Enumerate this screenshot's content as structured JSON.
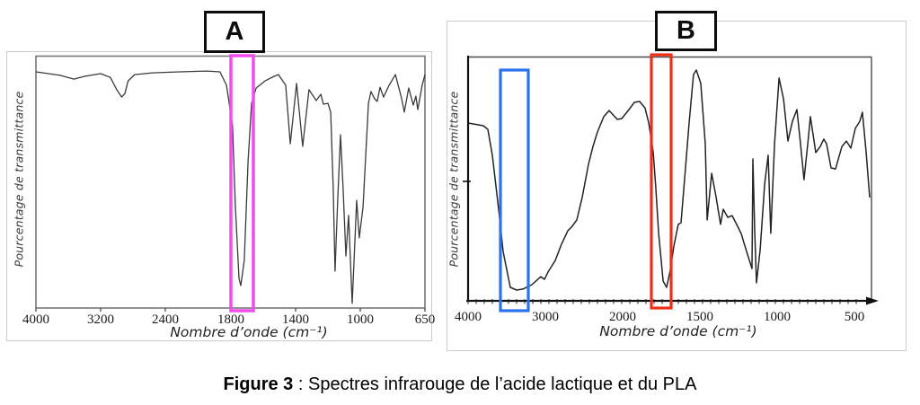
{
  "figure": {
    "caption_bold": "Figure 3",
    "caption_rest": " : Spectres infrarouge de l’acide lactique et du PLA"
  },
  "chart_data": [
    {
      "id": "A",
      "panel_label": "A",
      "type": "line",
      "xlabel": "Nombre d’onde (cm⁻¹)",
      "ylabel": "Pourcentage de transmittance",
      "x_ticks": [
        4000,
        3200,
        2400,
        1800,
        1400,
        1000,
        650
      ],
      "x_axis_reversed": true,
      "ylim": [
        0,
        100
      ],
      "grid": false,
      "series": [
        {
          "name": "spectre-A",
          "points": [
            [
              4000,
              93.6
            ],
            [
              3700,
              92.2
            ],
            [
              3530,
              90.7
            ],
            [
              3400,
              91.8
            ],
            [
              3200,
              92.9
            ],
            [
              3080,
              91.4
            ],
            [
              3000,
              86.5
            ],
            [
              2940,
              83.6
            ],
            [
              2900,
              85.0
            ],
            [
              2860,
              90.0
            ],
            [
              2780,
              92.5
            ],
            [
              2560,
              93.2
            ],
            [
              2270,
              93.6
            ],
            [
              2020,
              93.9
            ],
            [
              1900,
              93.6
            ],
            [
              1840,
              88.3
            ],
            [
              1790,
              72.2
            ],
            [
              1772,
              40.2
            ],
            [
              1750,
              11.7
            ],
            [
              1739,
              8.9
            ],
            [
              1717,
              18.9
            ],
            [
              1694,
              58.0
            ],
            [
              1672,
              81.1
            ],
            [
              1644,
              87.2
            ],
            [
              1589,
              90.0
            ],
            [
              1533,
              91.8
            ],
            [
              1506,
              92.5
            ],
            [
              1461,
              88.3
            ],
            [
              1433,
              65.1
            ],
            [
              1394,
              89.0
            ],
            [
              1356,
              64.1
            ],
            [
              1317,
              86.5
            ],
            [
              1272,
              82.2
            ],
            [
              1244,
              84.7
            ],
            [
              1228,
              80.8
            ],
            [
              1200,
              81.1
            ],
            [
              1183,
              77.6
            ],
            [
              1167,
              47.3
            ],
            [
              1156,
              14.6
            ],
            [
              1139,
              43.8
            ],
            [
              1122,
              68.7
            ],
            [
              1106,
              47.3
            ],
            [
              1089,
              20.6
            ],
            [
              1072,
              36.7
            ],
            [
              1050,
              1.8
            ],
            [
              1022,
              42.7
            ],
            [
              1006,
              27.8
            ],
            [
              985,
              40.2
            ],
            [
              956,
              81.1
            ],
            [
              942,
              85.8
            ],
            [
              922,
              82.9
            ],
            [
              908,
              81.9
            ],
            [
              893,
              87.5
            ],
            [
              874,
              83.6
            ],
            [
              844,
              88.3
            ],
            [
              810,
              92.5
            ],
            [
              776,
              82.9
            ],
            [
              762,
              77.6
            ],
            [
              738,
              87.2
            ],
            [
              713,
              80.4
            ],
            [
              699,
              84.0
            ],
            [
              689,
              78.6
            ],
            [
              665,
              88.3
            ],
            [
              650,
              92.5
            ]
          ]
        }
      ],
      "annotations": [
        {
          "name": "magenta-highlight-box",
          "color": "#f24cee",
          "wavenumber_range": [
            1800,
            1661
          ]
        }
      ]
    },
    {
      "id": "B",
      "panel_label": "B",
      "type": "line",
      "xlabel": "Nombre d’onde (cm⁻¹)",
      "ylabel": "Pourcentage de transmittance",
      "x_ticks": [
        4000,
        3000,
        2000,
        1500,
        1000,
        500
      ],
      "x_axis_reversed": true,
      "ylim": [
        0,
        100
      ],
      "grid": false,
      "series": [
        {
          "name": "spectre-B",
          "points": [
            [
              4000,
              72.8
            ],
            [
              3802,
              71.7
            ],
            [
              3744,
              70.2
            ],
            [
              3686,
              59.6
            ],
            [
              3605,
              37.5
            ],
            [
              3547,
              20.2
            ],
            [
              3453,
              5.5
            ],
            [
              3372,
              4.4
            ],
            [
              3291,
              4.8
            ],
            [
              3174,
              6.6
            ],
            [
              3058,
              9.9
            ],
            [
              3012,
              8.8
            ],
            [
              2965,
              11.8
            ],
            [
              2872,
              16.5
            ],
            [
              2791,
              23.2
            ],
            [
              2709,
              28.7
            ],
            [
              2663,
              30.1
            ],
            [
              2593,
              33.1
            ],
            [
              2523,
              42.3
            ],
            [
              2442,
              55.9
            ],
            [
              2384,
              63.2
            ],
            [
              2326,
              69.1
            ],
            [
              2244,
              75.4
            ],
            [
              2174,
              77.9
            ],
            [
              2070,
              74.3
            ],
            [
              2012,
              74.6
            ],
            [
              1959,
              78.3
            ],
            [
              1924,
              81.3
            ],
            [
              1890,
              81.6
            ],
            [
              1855,
              79.0
            ],
            [
              1831,
              72.8
            ],
            [
              1802,
              60.7
            ],
            [
              1785,
              46.0
            ],
            [
              1767,
              27.6
            ],
            [
              1738,
              8.1
            ],
            [
              1715,
              5.5
            ],
            [
              1692,
              12.5
            ],
            [
              1669,
              22.1
            ],
            [
              1640,
              31.3
            ],
            [
              1622,
              32.0
            ],
            [
              1593,
              54.4
            ],
            [
              1570,
              72.8
            ],
            [
              1541,
              92.6
            ],
            [
              1523,
              94.5
            ],
            [
              1494,
              89.0
            ],
            [
              1465,
              64.3
            ],
            [
              1453,
              33.1
            ],
            [
              1424,
              52.2
            ],
            [
              1395,
              42.3
            ],
            [
              1366,
              31.3
            ],
            [
              1349,
              37.5
            ],
            [
              1320,
              34.2
            ],
            [
              1291,
              34.9
            ],
            [
              1262,
              31.3
            ],
            [
              1233,
              27.6
            ],
            [
              1203,
              21.3
            ],
            [
              1174,
              15.4
            ],
            [
              1163,
              13.2
            ],
            [
              1157,
              58.1
            ],
            [
              1145,
              27.6
            ],
            [
              1134,
              7.4
            ],
            [
              1110,
              21.0
            ],
            [
              1081,
              47.8
            ],
            [
              1058,
              59.6
            ],
            [
              1041,
              27.6
            ],
            [
              1017,
              64.3
            ],
            [
              988,
              91.2
            ],
            [
              959,
              82.7
            ],
            [
              930,
              65.4
            ],
            [
              901,
              73.5
            ],
            [
              872,
              78.3
            ],
            [
              849,
              64.3
            ],
            [
              826,
              49.6
            ],
            [
              802,
              64.3
            ],
            [
              785,
              75.4
            ],
            [
              750,
              60.7
            ],
            [
              721,
              63.2
            ],
            [
              698,
              66.2
            ],
            [
              680,
              64.3
            ],
            [
              651,
              54.4
            ],
            [
              622,
              54.0
            ],
            [
              581,
              63.2
            ],
            [
              552,
              65.4
            ],
            [
              523,
              62.5
            ],
            [
              494,
              70.6
            ],
            [
              465,
              73.5
            ],
            [
              448,
              77.2
            ],
            [
              424,
              60.7
            ],
            [
              401,
              42.3
            ]
          ]
        }
      ],
      "annotations": [
        {
          "name": "blue-highlight-box",
          "color": "#2b72ee",
          "wavenumber_range": [
            3581,
            3221
          ]
        },
        {
          "name": "red-highlight-box",
          "color": "#ee2f18",
          "wavenumber_range": [
            1814,
            1686
          ]
        }
      ]
    }
  ]
}
